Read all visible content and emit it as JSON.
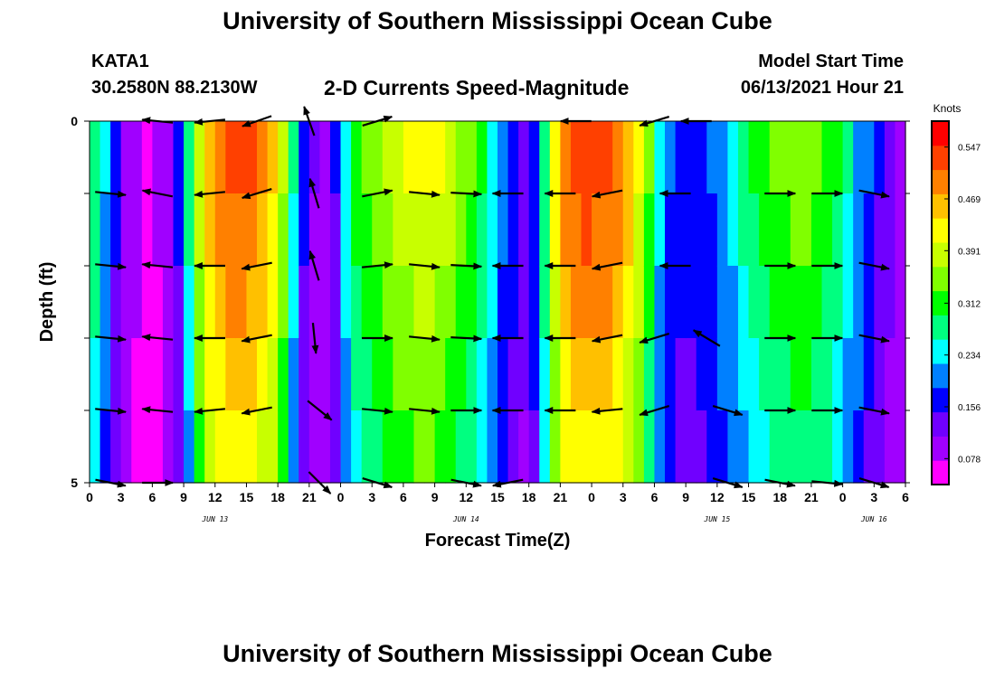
{
  "title": "University of Southern Mississippi Ocean Cube",
  "footer_title": "University of Southern Mississippi Ocean Cube",
  "station": {
    "name": "KATA1",
    "coords": "30.2580N  88.2130W"
  },
  "subtitle": "2-D Currents Speed-Magnitude",
  "model": {
    "label": "Model Start Time",
    "value": "06/13/2021 Hour 21"
  },
  "chart_data": {
    "type": "heatmap",
    "xlabel": "Forecast Time(Z)",
    "ylabel": "Depth (ft)",
    "ylim": [
      0,
      5
    ],
    "y_tick_labels": [
      "0",
      "",
      "",
      "",
      "",
      "5"
    ],
    "x_tick_labels": [
      "0",
      "3",
      "6",
      "9",
      "12",
      "15",
      "18",
      "21",
      "0",
      "3",
      "6",
      "9",
      "12",
      "15",
      "18",
      "21",
      "0",
      "3",
      "6",
      "9",
      "12",
      "15",
      "18",
      "21",
      "0",
      "3",
      "6"
    ],
    "date_labels": [
      {
        "label": "JUN 13",
        "hour_index": 12
      },
      {
        "label": "JUN 14",
        "hour_index": 36
      },
      {
        "label": "JUN 15",
        "hour_index": 60
      },
      {
        "label": "JUN 16",
        "hour_index": 75
      }
    ],
    "x_range_hours": [
      0,
      78
    ],
    "colorbar": {
      "unit": "Knots",
      "min": 0.039,
      "max": 0.586,
      "tick_labels": [
        "0.547",
        "0.469",
        "0.391",
        "0.312",
        "0.234",
        "0.156",
        "0.078"
      ],
      "colors": [
        "#ff00ff",
        "#a000ff",
        "#7000ff",
        "#0000ff",
        "#0080ff",
        "#00ffff",
        "#00ff80",
        "#00ff00",
        "#80ff00",
        "#c8ff00",
        "#ffff00",
        "#ffc000",
        "#ff8000",
        "#ff4000",
        "#ff0000"
      ]
    },
    "speed_profile_knots": [
      {
        "t": 0,
        "v": 0.32
      },
      {
        "t": 1,
        "v": 0.26
      },
      {
        "t": 2,
        "v": 0.19
      },
      {
        "t": 3,
        "v": 0.13
      },
      {
        "t": 4,
        "v": 0.09
      },
      {
        "t": 6,
        "v": 0.07
      },
      {
        "t": 8,
        "v": 0.12
      },
      {
        "t": 9,
        "v": 0.2
      },
      {
        "t": 10,
        "v": 0.35
      },
      {
        "t": 11,
        "v": 0.45
      },
      {
        "t": 12,
        "v": 0.5
      },
      {
        "t": 14,
        "v": 0.54
      },
      {
        "t": 16,
        "v": 0.52
      },
      {
        "t": 18,
        "v": 0.44
      },
      {
        "t": 19,
        "v": 0.32
      },
      {
        "t": 20,
        "v": 0.2
      },
      {
        "t": 21,
        "v": 0.12
      },
      {
        "t": 23,
        "v": 0.1
      },
      {
        "t": 24,
        "v": 0.2
      },
      {
        "t": 25,
        "v": 0.3
      },
      {
        "t": 27,
        "v": 0.36
      },
      {
        "t": 30,
        "v": 0.4
      },
      {
        "t": 32,
        "v": 0.42
      },
      {
        "t": 34,
        "v": 0.4
      },
      {
        "t": 36,
        "v": 0.35
      },
      {
        "t": 38,
        "v": 0.28
      },
      {
        "t": 40,
        "v": 0.18
      },
      {
        "t": 42,
        "v": 0.12
      },
      {
        "t": 44,
        "v": 0.35
      },
      {
        "t": 45,
        "v": 0.5
      },
      {
        "t": 47,
        "v": 0.55
      },
      {
        "t": 50,
        "v": 0.53
      },
      {
        "t": 52,
        "v": 0.45
      },
      {
        "t": 53,
        "v": 0.38
      },
      {
        "t": 55,
        "v": 0.2
      },
      {
        "t": 57,
        "v": 0.16
      },
      {
        "t": 59,
        "v": 0.18
      },
      {
        "t": 61,
        "v": 0.23
      },
      {
        "t": 63,
        "v": 0.29
      },
      {
        "t": 65,
        "v": 0.33
      },
      {
        "t": 68,
        "v": 0.36
      },
      {
        "t": 70,
        "v": 0.34
      },
      {
        "t": 72,
        "v": 0.28
      },
      {
        "t": 74,
        "v": 0.2
      },
      {
        "t": 76,
        "v": 0.14
      },
      {
        "t": 78,
        "v": 0.1
      }
    ],
    "arrows": [
      {
        "t": 6.5,
        "layer": 0,
        "dx": -1,
        "dy": -0.1
      },
      {
        "t": 11.5,
        "layer": 0,
        "dx": -1,
        "dy": 0.1
      },
      {
        "t": 16,
        "layer": 0,
        "dx": -1,
        "dy": 0.35
      },
      {
        "t": 21,
        "layer": 0,
        "dx": -0.35,
        "dy": -1
      },
      {
        "t": 27.5,
        "layer": 0,
        "dx": 1,
        "dy": -0.3
      },
      {
        "t": 46.5,
        "layer": 0,
        "dx": -1,
        "dy": 0
      },
      {
        "t": 54,
        "layer": 0,
        "dx": -1,
        "dy": 0.3
      },
      {
        "t": 58,
        "layer": 0,
        "dx": -1,
        "dy": 0
      },
      {
        "t": 2,
        "layer": 1,
        "dx": 1,
        "dy": 0.1
      },
      {
        "t": 6.5,
        "layer": 1,
        "dx": -1,
        "dy": -0.2
      },
      {
        "t": 11.5,
        "layer": 1,
        "dx": -1,
        "dy": 0.1
      },
      {
        "t": 16,
        "layer": 1,
        "dx": -1,
        "dy": 0.3
      },
      {
        "t": 21.5,
        "layer": 1,
        "dx": -0.3,
        "dy": -1
      },
      {
        "t": 27.5,
        "layer": 1,
        "dx": 1,
        "dy": -0.2
      },
      {
        "t": 32,
        "layer": 1,
        "dx": 1,
        "dy": 0.1
      },
      {
        "t": 36,
        "layer": 1,
        "dx": 1,
        "dy": 0.05
      },
      {
        "t": 40,
        "layer": 1,
        "dx": -1,
        "dy": 0
      },
      {
        "t": 45,
        "layer": 1,
        "dx": -1,
        "dy": 0
      },
      {
        "t": 49.5,
        "layer": 1,
        "dx": -1,
        "dy": 0.2
      },
      {
        "t": 56,
        "layer": 1,
        "dx": -1,
        "dy": 0
      },
      {
        "t": 66,
        "layer": 1,
        "dx": 1,
        "dy": 0
      },
      {
        "t": 70.5,
        "layer": 1,
        "dx": 1,
        "dy": 0
      },
      {
        "t": 75,
        "layer": 1,
        "dx": 1,
        "dy": 0.2
      },
      {
        "t": 2,
        "layer": 2,
        "dx": 1,
        "dy": 0.1
      },
      {
        "t": 6.5,
        "layer": 2,
        "dx": -1,
        "dy": -0.1
      },
      {
        "t": 11.5,
        "layer": 2,
        "dx": -1,
        "dy": 0
      },
      {
        "t": 16,
        "layer": 2,
        "dx": -1,
        "dy": 0.2
      },
      {
        "t": 21.5,
        "layer": 2,
        "dx": -0.3,
        "dy": -1
      },
      {
        "t": 27.5,
        "layer": 2,
        "dx": 1,
        "dy": -0.1
      },
      {
        "t": 32,
        "layer": 2,
        "dx": 1,
        "dy": 0.1
      },
      {
        "t": 36,
        "layer": 2,
        "dx": 1,
        "dy": 0.05
      },
      {
        "t": 40,
        "layer": 2,
        "dx": -1,
        "dy": 0
      },
      {
        "t": 45,
        "layer": 2,
        "dx": -1,
        "dy": 0
      },
      {
        "t": 49.5,
        "layer": 2,
        "dx": -1,
        "dy": 0.2
      },
      {
        "t": 56,
        "layer": 2,
        "dx": -1,
        "dy": 0
      },
      {
        "t": 66,
        "layer": 2,
        "dx": 1,
        "dy": 0
      },
      {
        "t": 70.5,
        "layer": 2,
        "dx": 1,
        "dy": 0
      },
      {
        "t": 75,
        "layer": 2,
        "dx": 1,
        "dy": 0.2
      },
      {
        "t": 2,
        "layer": 3,
        "dx": 1,
        "dy": 0.1
      },
      {
        "t": 6.5,
        "layer": 3,
        "dx": -1,
        "dy": -0.1
      },
      {
        "t": 11.5,
        "layer": 3,
        "dx": -1,
        "dy": 0
      },
      {
        "t": 16,
        "layer": 3,
        "dx": -1,
        "dy": 0.2
      },
      {
        "t": 21.5,
        "layer": 3,
        "dx": 0.1,
        "dy": 1
      },
      {
        "t": 27.5,
        "layer": 3,
        "dx": 1,
        "dy": 0
      },
      {
        "t": 32,
        "layer": 3,
        "dx": 1,
        "dy": 0.1
      },
      {
        "t": 36,
        "layer": 3,
        "dx": 1,
        "dy": 0.05
      },
      {
        "t": 40,
        "layer": 3,
        "dx": -1,
        "dy": 0
      },
      {
        "t": 45,
        "layer": 3,
        "dx": -1,
        "dy": 0
      },
      {
        "t": 49.5,
        "layer": 3,
        "dx": -1,
        "dy": 0.2
      },
      {
        "t": 54,
        "layer": 3,
        "dx": -1,
        "dy": 0.3
      },
      {
        "t": 59,
        "layer": 3,
        "dx": -1,
        "dy": -0.6
      },
      {
        "t": 66,
        "layer": 3,
        "dx": 1,
        "dy": 0
      },
      {
        "t": 70.5,
        "layer": 3,
        "dx": 1,
        "dy": 0
      },
      {
        "t": 75,
        "layer": 3,
        "dx": 1,
        "dy": 0.2
      },
      {
        "t": 2,
        "layer": 4,
        "dx": 1,
        "dy": 0.1
      },
      {
        "t": 6.5,
        "layer": 4,
        "dx": -1,
        "dy": -0.1
      },
      {
        "t": 11.5,
        "layer": 4,
        "dx": -1,
        "dy": 0.1
      },
      {
        "t": 16,
        "layer": 4,
        "dx": -1,
        "dy": 0.2
      },
      {
        "t": 22,
        "layer": 4,
        "dx": 1,
        "dy": 0.8
      },
      {
        "t": 27.5,
        "layer": 4,
        "dx": 1,
        "dy": 0.1
      },
      {
        "t": 32,
        "layer": 4,
        "dx": 1,
        "dy": 0.1
      },
      {
        "t": 36,
        "layer": 4,
        "dx": 1,
        "dy": 0
      },
      {
        "t": 40,
        "layer": 4,
        "dx": -1,
        "dy": 0
      },
      {
        "t": 45,
        "layer": 4,
        "dx": -1,
        "dy": 0
      },
      {
        "t": 49.5,
        "layer": 4,
        "dx": -1,
        "dy": 0.1
      },
      {
        "t": 54,
        "layer": 4,
        "dx": -1,
        "dy": 0.3
      },
      {
        "t": 61,
        "layer": 4,
        "dx": 1,
        "dy": 0.3
      },
      {
        "t": 66,
        "layer": 4,
        "dx": 1,
        "dy": 0
      },
      {
        "t": 70.5,
        "layer": 4,
        "dx": 1,
        "dy": 0
      },
      {
        "t": 75,
        "layer": 4,
        "dx": 1,
        "dy": 0.2
      },
      {
        "t": 2,
        "layer": 5,
        "dx": 1,
        "dy": 0.2
      },
      {
        "t": 6.5,
        "layer": 5,
        "dx": 1,
        "dy": 0
      },
      {
        "t": 22,
        "layer": 5,
        "dx": 1,
        "dy": 1
      },
      {
        "t": 27.5,
        "layer": 5,
        "dx": 1,
        "dy": 0.3
      },
      {
        "t": 36,
        "layer": 5,
        "dx": 1,
        "dy": 0.2
      },
      {
        "t": 40,
        "layer": 5,
        "dx": -1,
        "dy": 0.2
      },
      {
        "t": 61,
        "layer": 5,
        "dx": 1,
        "dy": 0.3
      },
      {
        "t": 66,
        "layer": 5,
        "dx": 1,
        "dy": 0.2
      },
      {
        "t": 70.5,
        "layer": 5,
        "dx": 1,
        "dy": 0.1
      },
      {
        "t": 75,
        "layer": 5,
        "dx": 1,
        "dy": 0.3
      }
    ]
  }
}
